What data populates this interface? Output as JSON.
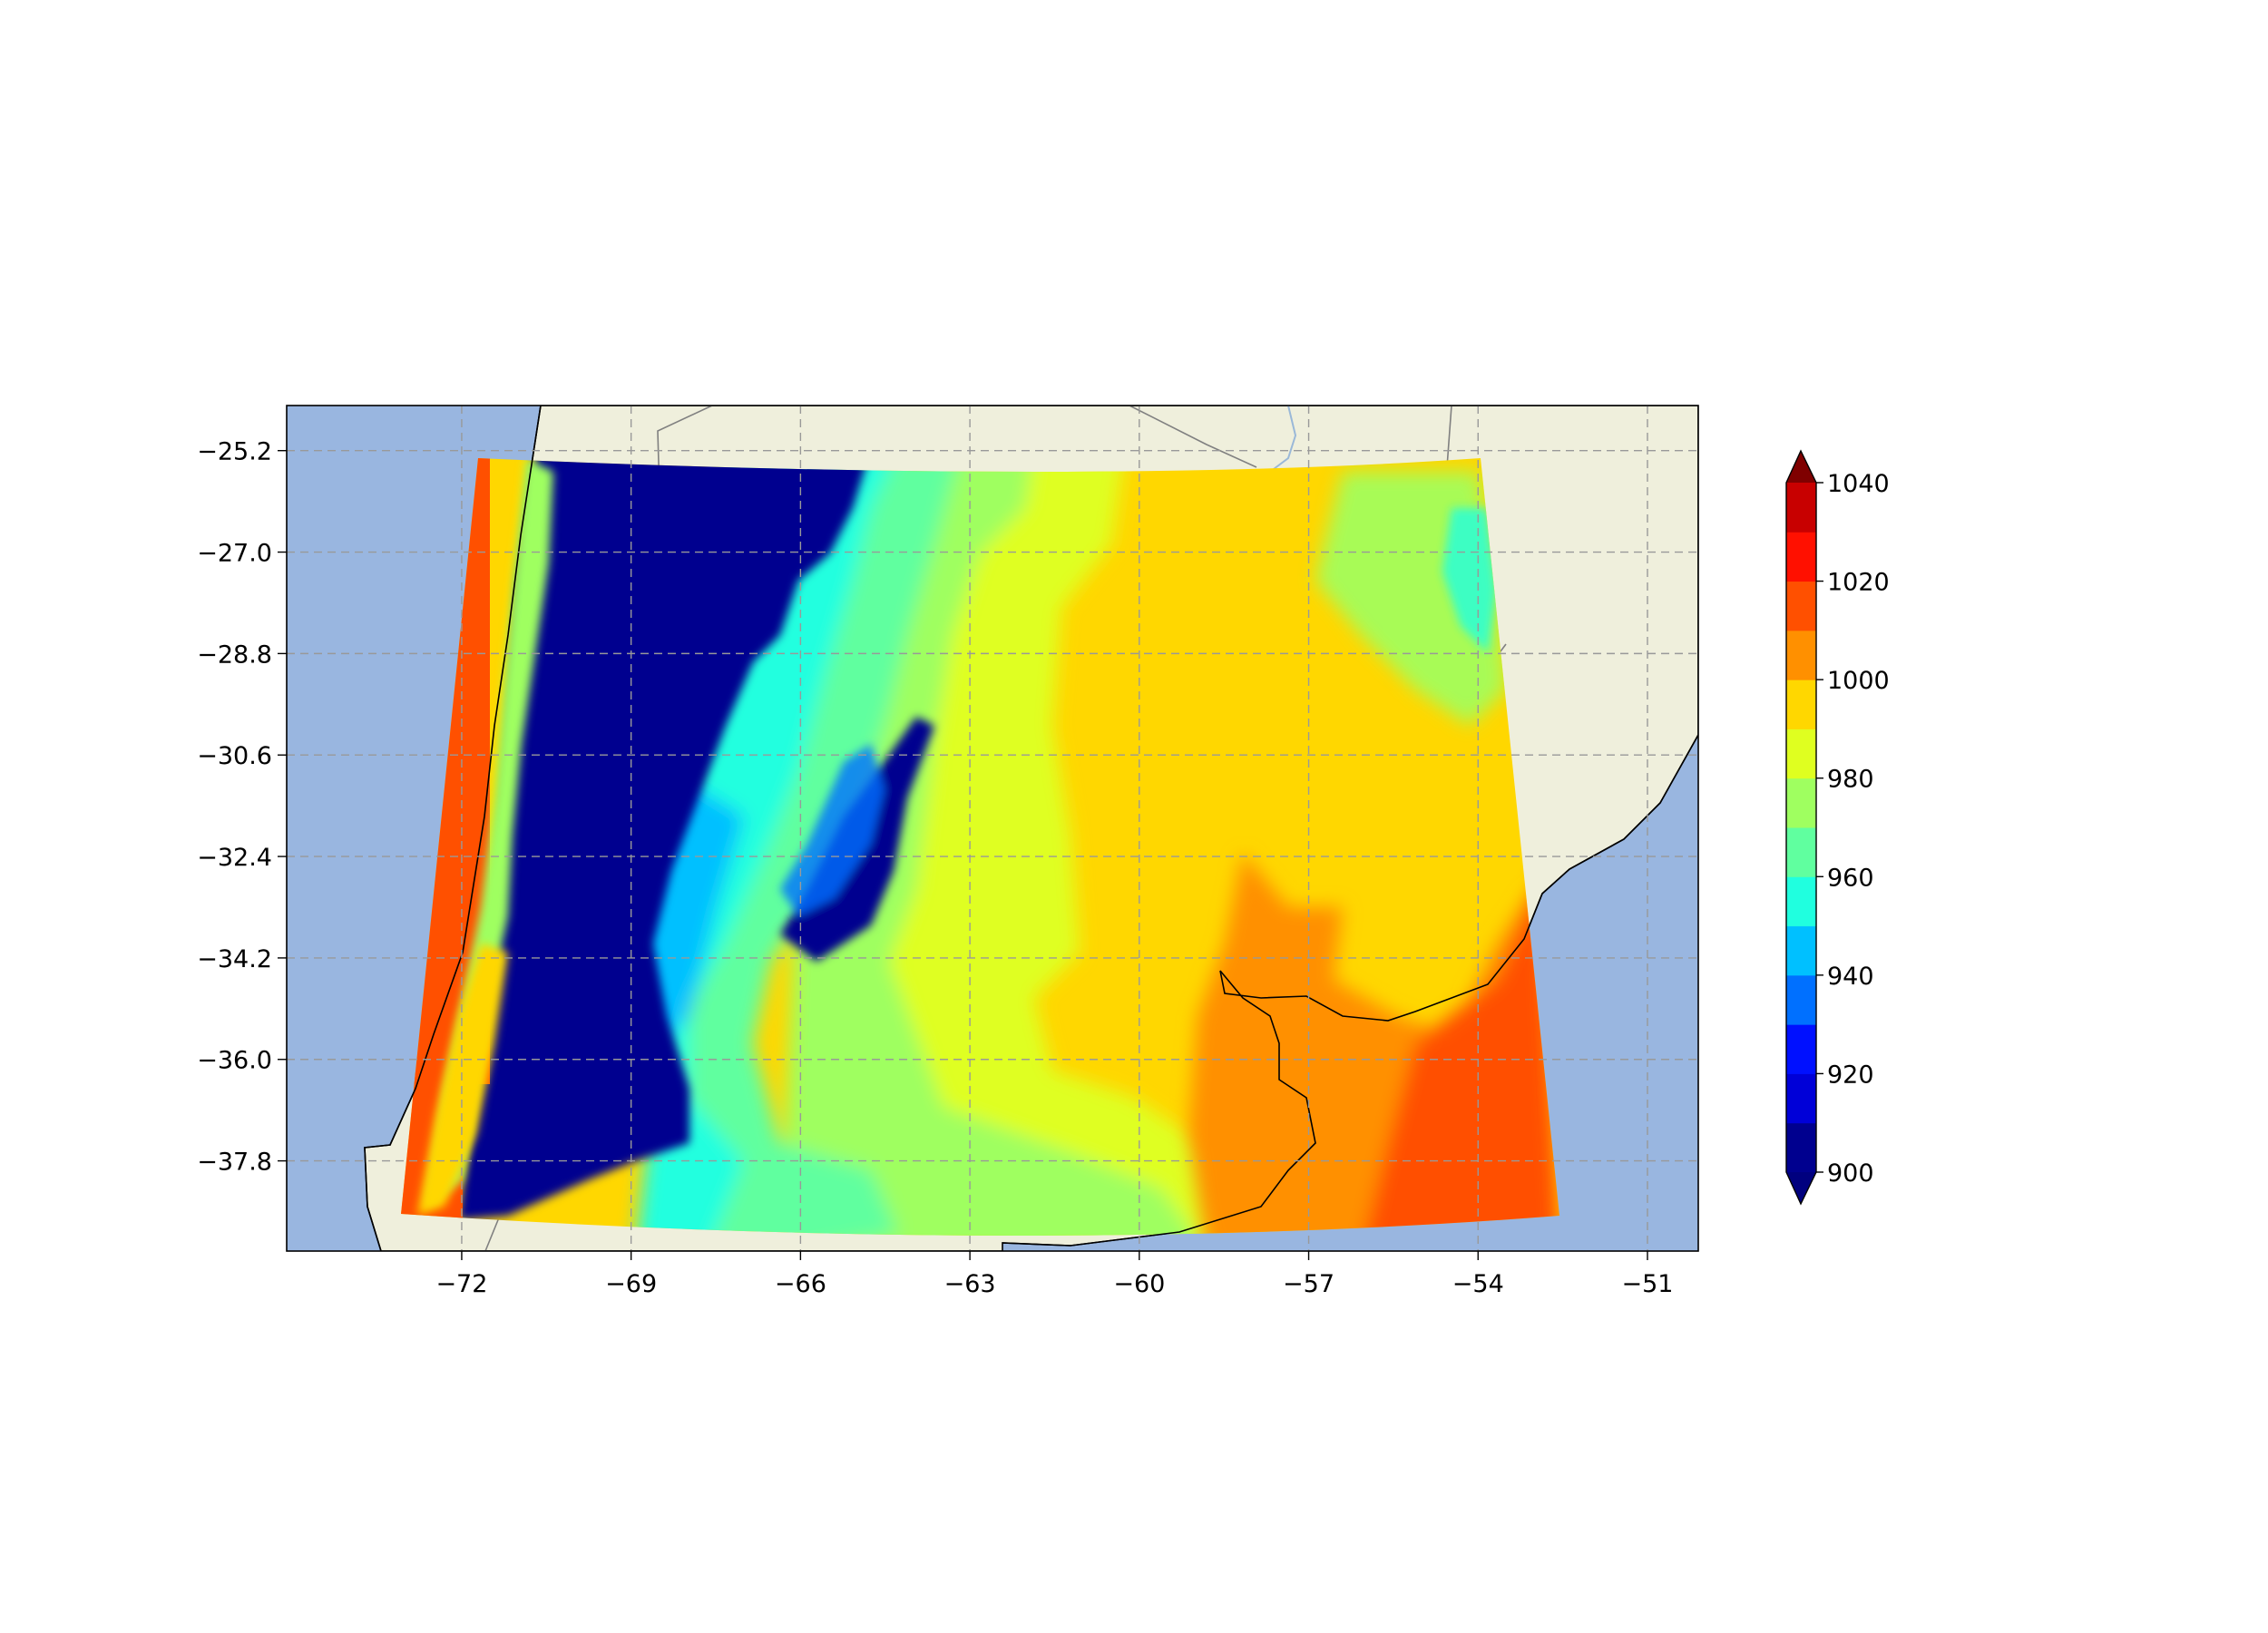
{
  "map": {
    "lon_ticks": [
      "−72",
      "−69",
      "−66",
      "−63",
      "−60",
      "−57",
      "−54",
      "−51"
    ],
    "lat_ticks": [
      "−25.2",
      "−27.0",
      "−28.8",
      "−30.6",
      "−32.4",
      "−34.2",
      "−36.0",
      "−37.8"
    ],
    "lon_values": [
      -72,
      -69,
      -66,
      -63,
      -60,
      -57,
      -54,
      -51
    ],
    "lat_values": [
      -25.2,
      -27.0,
      -28.8,
      -30.6,
      -32.4,
      -34.2,
      -36.0,
      -37.8
    ],
    "extent": {
      "lon_min": -75.1,
      "lon_max": -50.1,
      "lat_min": -39.4,
      "lat_max": -24.4
    },
    "gridlines": true,
    "colors": {
      "ocean": "#99b6e0",
      "land": "#efefdc",
      "coastline": "#000000",
      "borders": "#808080",
      "rivers": "#9ab8d8"
    }
  },
  "colorbar": {
    "ticks": [
      "900",
      "920",
      "940",
      "960",
      "980",
      "1000",
      "1020",
      "1040"
    ],
    "min": 900,
    "max": 1040,
    "step": 10,
    "extend": "both",
    "levels": [
      {
        "from": 900,
        "to": 910,
        "color": "#00008f"
      },
      {
        "from": 910,
        "to": 920,
        "color": "#0000d8"
      },
      {
        "from": 920,
        "to": 930,
        "color": "#0010ff"
      },
      {
        "from": 930,
        "to": 940,
        "color": "#0070ff"
      },
      {
        "from": 940,
        "to": 950,
        "color": "#00c0ff"
      },
      {
        "from": 950,
        "to": 960,
        "color": "#20ffdf"
      },
      {
        "from": 960,
        "to": 970,
        "color": "#60ff9f"
      },
      {
        "from": 970,
        "to": 980,
        "color": "#9fff60"
      },
      {
        "from": 980,
        "to": 990,
        "color": "#dfff20"
      },
      {
        "from": 990,
        "to": 1000,
        "color": "#ffd700"
      },
      {
        "from": 1000,
        "to": 1010,
        "color": "#ff9000"
      },
      {
        "from": 1010,
        "to": 1020,
        "color": "#ff5000"
      },
      {
        "from": 1020,
        "to": 1030,
        "color": "#ff1000"
      },
      {
        "from": 1030,
        "to": 1040,
        "color": "#c80000"
      }
    ],
    "under_color": "#00007f",
    "over_color": "#7f0000"
  }
}
